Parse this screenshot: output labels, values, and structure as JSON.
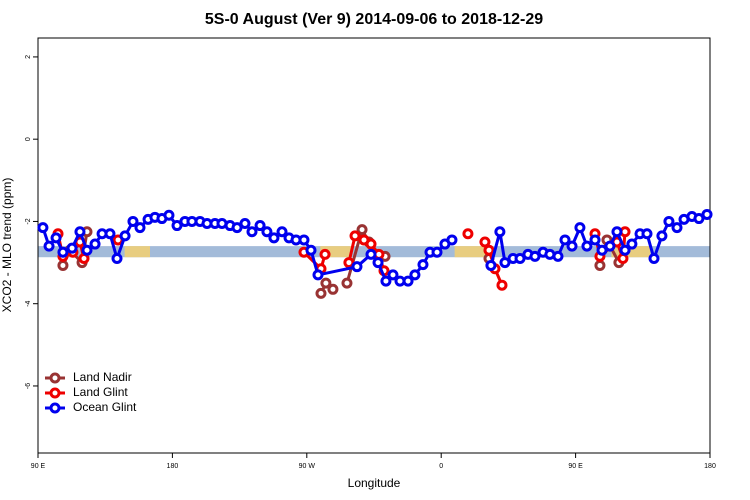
{
  "chart_data": {
    "type": "line",
    "title": "5S-0 August (Ver 9)   2014-09-06 to 2018-12-29",
    "xlabel": "Longitude",
    "ylabel": "XCO2 - MLO trend (ppm)",
    "xlim": [
      90,
      540
    ],
    "xticks": [
      {
        "value": 90,
        "label": "90 E"
      },
      180,
      {
        "value": 270,
        "label": "90 W"
      },
      {
        "value": 360,
        "label": "0"
      },
      {
        "value": 450,
        "label": "90 E"
      },
      {
        "value": 540,
        "label": "180"
      }
    ],
    "ylim": [
      -7.63,
      2.46
    ],
    "yticks": [
      2,
      0,
      -2,
      -4,
      -6
    ],
    "band": [
      -2.6,
      -2.87
    ],
    "band_color": "#a3bbd9",
    "highlights": [
      [
        148,
        165
      ],
      [
        279,
        300
      ],
      [
        369,
        393
      ],
      [
        474,
        500
      ]
    ],
    "highlight_color": "#f5d070",
    "legend": "bottom-left",
    "series": [
      {
        "name": "Land Nadir",
        "color": "#993333",
        "x": [
          106.7,
          111.4,
          119.5,
          122.8,
          null,
          279.5,
          282.8,
          287.5,
          null,
          296.9,
          307.0,
          311.6,
          null,
          322.4,
          null,
          392.0,
          null,
          466.3,
          471.0,
          479.0
        ],
        "values": [
          -3.07,
          -2.7,
          -3.0,
          -2.25,
          null,
          -3.75,
          -3.5,
          -3.65,
          null,
          -3.5,
          -2.2,
          -2.5,
          null,
          -2.85,
          null,
          -2.9,
          null,
          -3.07,
          -2.45,
          -3.0
        ]
      },
      {
        "name": "Land Glint",
        "color": "#ee0000",
        "x": [
          103.4,
          106.7,
          113.4,
          118.1,
          120.8,
          null,
          143.6,
          null,
          268.1,
          279.5,
          282.2,
          null,
          298.2,
          302.3,
          308.3,
          313.0,
          318.3,
          321.7,
          null,
          377.9,
          null,
          389.3,
          392.0,
          396.0,
          400.7,
          null,
          463.0,
          466.3,
          477.7,
          481.7,
          483.1
        ],
        "values": [
          -2.3,
          -2.85,
          -2.75,
          -2.5,
          -2.9,
          null,
          -2.45,
          null,
          -2.75,
          -3.15,
          -2.8,
          null,
          -3.0,
          -2.35,
          -2.45,
          -2.55,
          -2.8,
          -3.2,
          null,
          -2.3,
          null,
          -2.5,
          -2.7,
          -3.15,
          -3.55,
          null,
          -2.3,
          -2.85,
          -2.5,
          -2.9,
          -2.25
        ]
      },
      {
        "name": "Ocean Glint",
        "color": "#0000ee",
        "x": [
          93.3,
          97.4,
          102.1,
          106.7,
          112.8,
          118.1,
          122.8,
          128.2,
          132.9,
          138.2,
          142.9,
          148.3,
          153.6,
          158.3,
          163.7,
          168.3,
          173.0,
          177.7,
          183.1,
          188.4,
          193.1,
          198.5,
          203.2,
          208.5,
          213.2,
          218.6,
          223.3,
          228.6,
          233.3,
          238.7,
          243.3,
          248.0,
          253.4,
          258.1,
          262.8,
          268.1,
          272.8,
          277.5,
          303.6,
          313.0,
          317.7,
          323.0,
          327.7,
          332.4,
          337.8,
          342.4,
          347.8,
          352.5,
          357.2,
          362.5,
          367.2,
          null,
          393.3,
          399.3,
          402.7,
          408.1,
          412.8,
          418.1,
          422.8,
          428.2,
          432.8,
          438.2,
          442.9,
          447.6,
          452.9,
          457.6,
          463.0,
          467.7,
          473.0,
          477.7,
          483.1,
          487.7,
          493.1,
          497.8,
          502.5,
          507.8,
          512.5,
          517.9,
          522.6,
          527.9,
          532.6,
          538.0
        ],
        "values": [
          -2.15,
          -2.6,
          -2.4,
          -2.75,
          -2.65,
          -2.25,
          -2.7,
          -2.55,
          -2.3,
          -2.3,
          -2.9,
          -2.35,
          -2.0,
          -2.15,
          -1.95,
          -1.9,
          -1.93,
          -1.85,
          -2.1,
          -2.0,
          -2.0,
          -2.0,
          -2.05,
          -2.05,
          -2.05,
          -2.1,
          -2.15,
          -2.05,
          -2.25,
          -2.1,
          -2.25,
          -2.4,
          -2.25,
          -2.4,
          -2.45,
          -2.45,
          -2.7,
          -3.3,
          -3.1,
          -2.8,
          -3.0,
          -3.45,
          -3.3,
          -3.45,
          -3.45,
          -3.3,
          -3.05,
          -2.75,
          -2.75,
          -2.55,
          -2.45,
          null,
          -3.07,
          -2.25,
          -3.0,
          -2.9,
          -2.9,
          -2.8,
          -2.85,
          -2.75,
          -2.8,
          -2.85,
          -2.45,
          -2.6,
          -2.15,
          -2.6,
          -2.45,
          -2.7,
          -2.6,
          -2.25,
          -2.7,
          -2.55,
          -2.3,
          -2.3,
          -2.9,
          -2.35,
          -2.0,
          -2.15,
          -1.95,
          -1.88,
          -1.93,
          -1.83
        ]
      }
    ]
  }
}
